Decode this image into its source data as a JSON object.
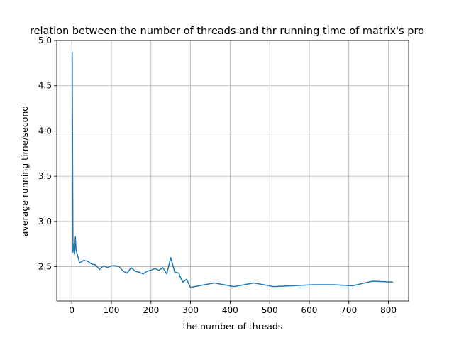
{
  "chart_data": {
    "type": "line",
    "title": "relation between the number of threads and thr running time of matrix's pro",
    "xlabel": "the number of threads",
    "ylabel": "average running time/second",
    "xlim": [
      -38,
      851
    ],
    "ylim": [
      2.12,
      5.0
    ],
    "xticks": [
      0,
      100,
      200,
      300,
      400,
      500,
      600,
      700,
      800
    ],
    "yticks": [
      2.5,
      3.0,
      3.5,
      4.0,
      4.5,
      5.0
    ],
    "xtick_labels": [
      "0",
      "100",
      "200",
      "300",
      "400",
      "500",
      "600",
      "700",
      "800"
    ],
    "ytick_labels": [
      "2.5",
      "3.0",
      "3.5",
      "4.0",
      "4.5",
      "5.0"
    ],
    "grid": true,
    "line_color": "#1f77b4",
    "series": [
      {
        "x": [
          1,
          3,
          5,
          7,
          9,
          11,
          20,
          30,
          40,
          50,
          60,
          70,
          80,
          90,
          100,
          110,
          120,
          130,
          140,
          150,
          160,
          170,
          180,
          190,
          200,
          210,
          220,
          230,
          240,
          250,
          260,
          270,
          280,
          290,
          300,
          310,
          360,
          410,
          460,
          510,
          560,
          610,
          660,
          710,
          760,
          810
        ],
        "y": [
          4.87,
          2.66,
          2.75,
          2.64,
          2.83,
          2.68,
          2.54,
          2.57,
          2.56,
          2.53,
          2.52,
          2.47,
          2.51,
          2.49,
          2.51,
          2.51,
          2.5,
          2.45,
          2.43,
          2.49,
          2.45,
          2.44,
          2.42,
          2.45,
          2.46,
          2.48,
          2.46,
          2.49,
          2.42,
          2.6,
          2.44,
          2.43,
          2.33,
          2.36,
          2.27,
          2.28,
          2.32,
          2.28,
          2.32,
          2.28,
          2.29,
          2.3,
          2.3,
          2.29,
          2.34,
          2.33
        ]
      }
    ]
  }
}
